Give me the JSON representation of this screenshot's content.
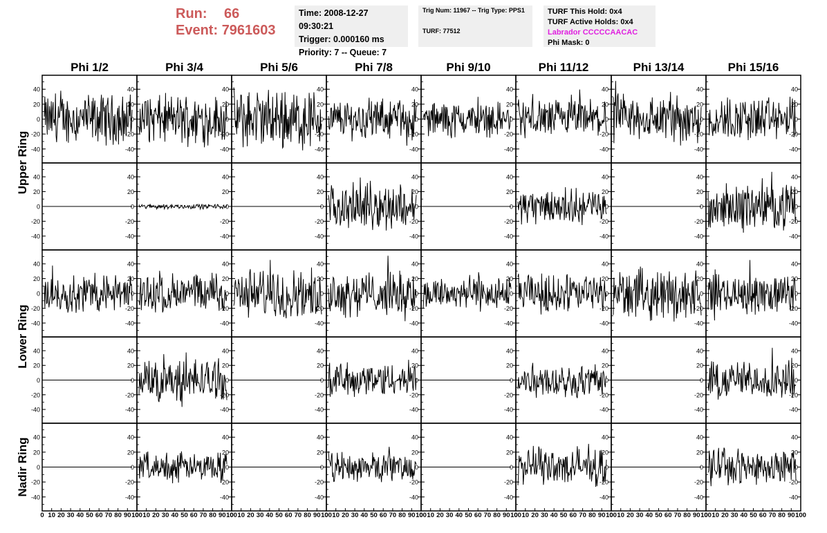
{
  "header": {
    "run_label": "Run:",
    "run_value": "66",
    "event_label": "Event:",
    "event_value": "7961603",
    "run_color": "#cc5a5a"
  },
  "info1": {
    "time": "Time: 2008-12-27 09:30:21",
    "trigger": "Trigger: 0.000160 ms",
    "priority": "Priority: 7 -- Queue: 7"
  },
  "info2": {
    "trig": "Trig Num: 11967 -- Trig Type: PPS1",
    "turf": "TURF: 77512"
  },
  "info3": {
    "this_hold": "TURF This Hold: 0x4",
    "active_holds": "TURF Active Holds: 0x4",
    "labrador": "Labrador CCCCCAACAC",
    "phi_mask": "Phi Mask: 0",
    "labrador_color": "#e020e0"
  },
  "chart_data": {
    "type": "line",
    "columns": [
      "Phi 1/2",
      "Phi 3/4",
      "Phi 5/6",
      "Phi 7/8",
      "Phi 9/10",
      "Phi 11/12",
      "Phi 13/14",
      "Phi 15/16"
    ],
    "ring_labels": [
      "Upper Ring",
      "Lower Ring",
      "Nadir Ring"
    ],
    "ring_rows": [
      [
        0,
        1
      ],
      [
        2,
        3
      ],
      [
        4
      ]
    ],
    "rows": 5,
    "ylim": [
      -55,
      55
    ],
    "yticks": [
      -40,
      -20,
      0,
      20,
      40
    ],
    "xlim": [
      0,
      100
    ],
    "xtick_labels": [
      "0",
      "10",
      "20",
      "30",
      "40",
      "50",
      "60",
      "70",
      "80",
      "90",
      "100"
    ],
    "grid": false,
    "waveform_amplitude": [
      [
        20,
        20,
        24,
        16,
        14,
        16,
        20,
        18
      ],
      [
        0,
        2,
        0,
        18,
        0,
        14,
        0,
        18
      ],
      [
        16,
        16,
        20,
        18,
        14,
        16,
        20,
        16
      ],
      [
        0,
        18,
        0,
        14,
        0,
        14,
        0,
        16
      ],
      [
        0,
        12,
        0,
        12,
        0,
        16,
        0,
        14
      ]
    ]
  }
}
